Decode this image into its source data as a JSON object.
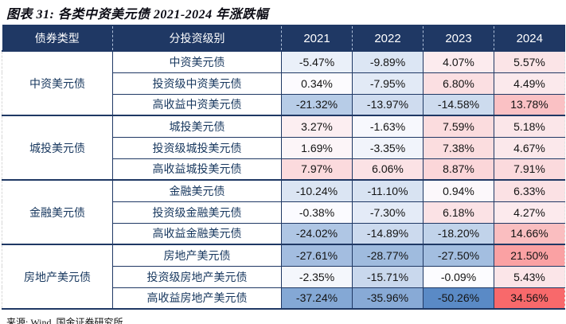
{
  "title": "图表 31: 各类中资美元债 2021-2024 年涨跌幅",
  "source": "来源: Wind, 国金证券研究所",
  "colors": {
    "header_bg": "#1F3864",
    "header_text": "#FFFFFF",
    "border": "#1F3864",
    "label_text": "#17375E",
    "scale_negative": "#5A8AC6",
    "scale_mid": "#FCFCFF",
    "scale_positive": "#F8696B"
  },
  "chart_data": {
    "type": "table",
    "title": "图表 31: 各类中资美元债 2021-2024 年涨跌幅",
    "columns": [
      "债券类型",
      "分投资级别",
      "2021",
      "2022",
      "2023",
      "2024"
    ],
    "unit": "%",
    "value_format": "percent_2dp",
    "color_scale": {
      "min_value": -50.26,
      "mid_value": 0,
      "max_value": 34.56
    },
    "groups": [
      {
        "type": "中资美元债",
        "rows": [
          {
            "label": "中资美元债",
            "values": [
              -5.47,
              -9.89,
              4.07,
              5.57
            ]
          },
          {
            "label": "投资级中资美元债",
            "values": [
              0.34,
              -7.95,
              6.8,
              4.49
            ]
          },
          {
            "label": "高收益中资美元债",
            "values": [
              -21.32,
              -13.97,
              -14.58,
              13.78
            ]
          }
        ]
      },
      {
        "type": "城投美元债",
        "rows": [
          {
            "label": "城投美元债",
            "values": [
              3.27,
              -1.63,
              7.59,
              5.18
            ]
          },
          {
            "label": "投资级城投美元债",
            "values": [
              1.69,
              -3.35,
              7.38,
              4.67
            ]
          },
          {
            "label": "高收益城投美元债",
            "values": [
              7.97,
              6.06,
              8.87,
              7.91
            ]
          }
        ]
      },
      {
        "type": "金融美元债",
        "rows": [
          {
            "label": "金融美元债",
            "values": [
              -10.24,
              -11.1,
              0.94,
              6.33
            ]
          },
          {
            "label": "投资级金融美元债",
            "values": [
              -0.38,
              -7.3,
              6.18,
              4.27
            ]
          },
          {
            "label": "高收益金融美元债",
            "values": [
              -24.02,
              -14.89,
              -18.2,
              14.66
            ]
          }
        ]
      },
      {
        "type": "房地产美元债",
        "rows": [
          {
            "label": "房地产美元债",
            "values": [
              -27.61,
              -28.77,
              -27.5,
              21.5
            ]
          },
          {
            "label": "投资级房地产美元债",
            "values": [
              -2.35,
              -15.71,
              -0.09,
              5.43
            ]
          },
          {
            "label": "高收益房地产美元债",
            "values": [
              -37.24,
              -35.96,
              -50.26,
              34.56
            ]
          }
        ]
      }
    ]
  }
}
